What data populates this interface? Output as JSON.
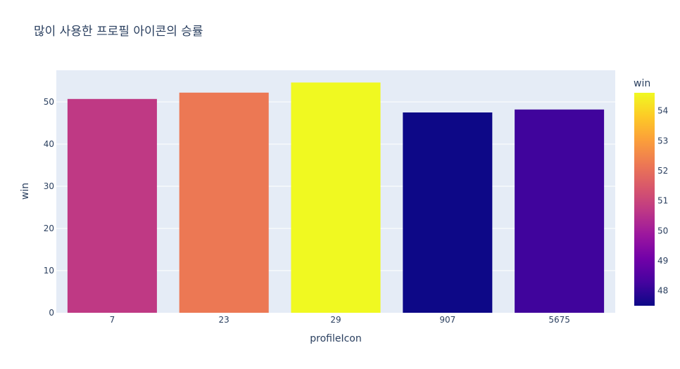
{
  "chart_data": {
    "type": "bar",
    "title": "많이 사용한 프로필 아이콘의 승률",
    "xlabel": "profileIcon",
    "ylabel": "win",
    "categories": [
      "7",
      "23",
      "29",
      "907",
      "5675"
    ],
    "values": [
      50.7,
      52.2,
      54.6,
      47.5,
      48.2
    ],
    "ylim": [
      0,
      57.5
    ],
    "yticks": [
      0,
      10,
      20,
      30,
      40,
      50
    ],
    "grid": true,
    "colorbar": {
      "title": "win",
      "range": [
        47.5,
        54.6
      ],
      "ticks": [
        48,
        49,
        50,
        51,
        52,
        53,
        54
      ],
      "colorscale": [
        "#0d0887",
        "#46039f",
        "#7201a8",
        "#9c179e",
        "#bd3786",
        "#d8576b",
        "#ed7953",
        "#fb9f3a",
        "#fdca26",
        "#f0f921"
      ]
    }
  }
}
